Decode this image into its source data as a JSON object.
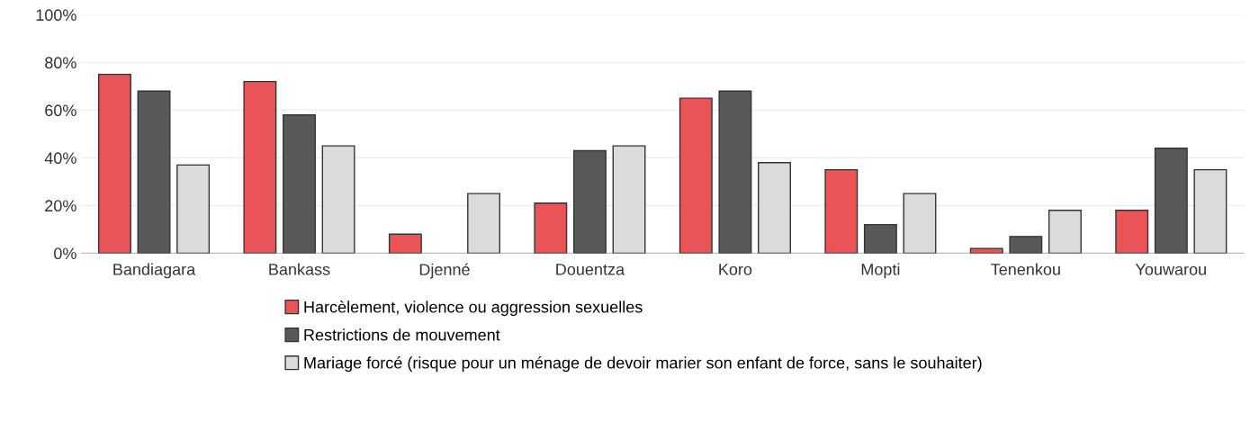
{
  "chart_data": {
    "type": "bar",
    "categories": [
      "Bandiagara",
      "Bankass",
      "Djenné",
      "Douentza",
      "Koro",
      "Mopti",
      "Tenenkou",
      "Youwarou"
    ],
    "series": [
      {
        "name": "Harcèlement, violence ou aggression sexuelles",
        "color": "#ea5456",
        "values": [
          75,
          72,
          8,
          21,
          65,
          35,
          2,
          18
        ]
      },
      {
        "name": "Restrictions de mouvement",
        "color": "#595959",
        "values": [
          68,
          58,
          null,
          43,
          68,
          12,
          7,
          44
        ]
      },
      {
        "name": "Mariage forcé (risque pour un ménage de devoir marier son enfant de force, sans le souhaiter)",
        "color": "#dadbdd",
        "values": [
          37,
          45,
          25,
          45,
          38,
          25,
          18,
          35
        ]
      }
    ],
    "ylim": [
      0,
      100
    ],
    "yticks": [
      {
        "value": 0,
        "label": "0%"
      },
      {
        "value": 20,
        "label": "20%"
      },
      {
        "value": 40,
        "label": "40%"
      },
      {
        "value": 60,
        "label": "60%"
      },
      {
        "value": 80,
        "label": "80%"
      },
      {
        "value": 100,
        "label": "100%"
      }
    ],
    "grid": "y",
    "legend": "bottom"
  }
}
